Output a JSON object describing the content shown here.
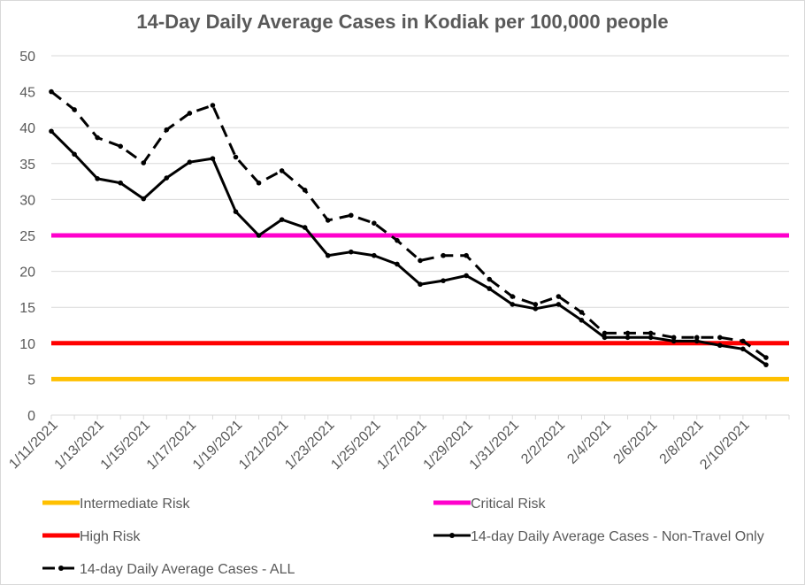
{
  "chart_data": {
    "type": "line",
    "title": "14-Day Daily Average Cases in Kodiak per 100,000 people",
    "xlabel": "",
    "ylabel": "",
    "ylim": [
      0,
      50
    ],
    "yticks": [
      "0",
      "5",
      "10",
      "15",
      "20",
      "25",
      "30",
      "35",
      "40",
      "45",
      "50"
    ],
    "x": [
      "1/11/2021",
      "1/12/2021",
      "1/13/2021",
      "1/14/2021",
      "1/15/2021",
      "1/16/2021",
      "1/17/2021",
      "1/18/2021",
      "1/19/2021",
      "1/20/2021",
      "1/21/2021",
      "1/22/2021",
      "1/23/2021",
      "1/24/2021",
      "1/25/2021",
      "1/26/2021",
      "1/27/2021",
      "1/28/2021",
      "1/29/2021",
      "1/30/2021",
      "1/31/2021",
      "2/1/2021",
      "2/2/2021",
      "2/3/2021",
      "2/4/2021",
      "2/5/2021",
      "2/6/2021",
      "2/7/2021",
      "2/8/2021",
      "2/9/2021",
      "2/10/2021",
      "2/11/2021"
    ],
    "x_tick_labels": [
      "1/11/2021",
      "1/13/2021",
      "1/15/2021",
      "1/17/2021",
      "1/19/2021",
      "1/21/2021",
      "1/23/2021",
      "1/25/2021",
      "1/27/2021",
      "1/29/2021",
      "1/31/2021",
      "2/2/2021",
      "2/4/2021",
      "2/6/2021",
      "2/8/2021",
      "2/10/2021"
    ],
    "reference_lines": [
      {
        "name": "Intermediate Risk",
        "value": 5,
        "color": "#ffc000"
      },
      {
        "name": "Critical Risk",
        "value": 25,
        "color": "#ff00cc"
      },
      {
        "name": "High Risk",
        "value": 10,
        "color": "#ff0000"
      }
    ],
    "series": [
      {
        "name": "14-day Daily Average Cases - Non-Travel Only",
        "style": "solid",
        "color": "#000000",
        "values": [
          39.5,
          36.3,
          32.9,
          32.3,
          30.1,
          33.0,
          35.2,
          35.7,
          28.3,
          25.0,
          27.2,
          26.1,
          22.2,
          22.7,
          22.2,
          21.0,
          18.2,
          18.7,
          19.4,
          17.6,
          15.4,
          14.8,
          15.4,
          13.2,
          10.8,
          10.8,
          10.8,
          10.3,
          10.3,
          9.7,
          9.2,
          7.0
        ]
      },
      {
        "name": "14-day Daily Average Cases - ALL",
        "style": "dashed",
        "color": "#000000",
        "values": [
          45.0,
          42.5,
          38.6,
          37.4,
          35.1,
          39.7,
          42.0,
          43.1,
          35.9,
          32.3,
          34.0,
          31.3,
          27.1,
          27.8,
          26.7,
          24.3,
          21.5,
          22.2,
          22.2,
          18.9,
          16.5,
          15.4,
          16.5,
          14.3,
          11.4,
          11.4,
          11.4,
          10.8,
          10.8,
          10.8,
          10.3,
          8.0
        ]
      }
    ],
    "legend": {
      "placement": "bottom",
      "entries": [
        "Intermediate Risk",
        "Critical Risk",
        "High Risk",
        "14-day Daily Average Cases - Non-Travel Only",
        "14-day Daily Average Cases - ALL"
      ]
    },
    "grid": true,
    "colors": {
      "grid": "#d9d9d9",
      "text": "#595959",
      "axis": "#d9d9d9"
    }
  }
}
